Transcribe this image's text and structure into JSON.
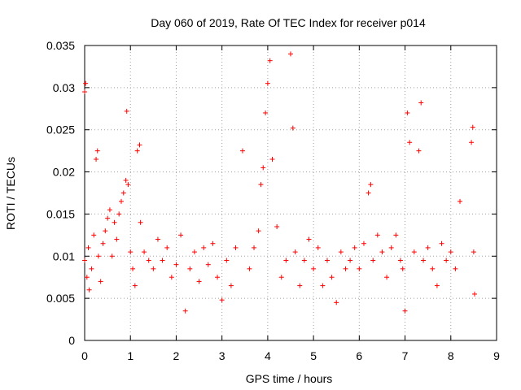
{
  "chart_data": {
    "type": "scatter",
    "title": "Day 060 of 2019, Rate Of TEC Index for receiver p014",
    "xlabel": "GPS time / hours",
    "ylabel": "ROTI / TECUs",
    "xlim": [
      0,
      9
    ],
    "ylim": [
      0,
      0.035
    ],
    "xticks": [
      "0",
      "1",
      "2",
      "3",
      "4",
      "5",
      "6",
      "7",
      "8",
      "9"
    ],
    "yticks": [
      "0",
      "0.005",
      "0.01",
      "0.015",
      "0.02",
      "0.025",
      "0.03",
      "0.035"
    ],
    "grid": true,
    "marker": "plus",
    "color": "#ff0000",
    "x": [
      0.0,
      0.0,
      0.02,
      0.05,
      0.08,
      0.1,
      0.15,
      0.2,
      0.25,
      0.28,
      0.3,
      0.35,
      0.4,
      0.45,
      0.5,
      0.55,
      0.6,
      0.65,
      0.7,
      0.75,
      0.8,
      0.85,
      0.9,
      0.92,
      0.95,
      1.0,
      1.05,
      1.1,
      1.15,
      1.2,
      1.22,
      1.3,
      1.4,
      1.5,
      1.6,
      1.7,
      1.8,
      1.9,
      2.0,
      2.1,
      2.2,
      2.3,
      2.4,
      2.5,
      2.6,
      2.7,
      2.8,
      2.9,
      3.0,
      3.1,
      3.2,
      3.3,
      3.45,
      3.6,
      3.7,
      3.8,
      3.85,
      3.9,
      3.95,
      4.0,
      4.05,
      4.1,
      4.2,
      4.3,
      4.4,
      4.5,
      4.55,
      4.6,
      4.7,
      4.8,
      4.9,
      5.0,
      5.1,
      5.2,
      5.3,
      5.4,
      5.5,
      5.6,
      5.7,
      5.8,
      5.9,
      6.0,
      6.1,
      6.2,
      6.25,
      6.3,
      6.4,
      6.5,
      6.6,
      6.7,
      6.8,
      6.9,
      6.95,
      7.0,
      7.05,
      7.1,
      7.2,
      7.3,
      7.35,
      7.4,
      7.5,
      7.6,
      7.7,
      7.8,
      7.9,
      8.0,
      8.1,
      8.2,
      8.45,
      8.48,
      8.5,
      8.52
    ],
    "y": [
      0.0095,
      0.0295,
      0.0305,
      0.0075,
      0.011,
      0.006,
      0.0085,
      0.0125,
      0.0215,
      0.0225,
      0.01,
      0.007,
      0.0115,
      0.013,
      0.0145,
      0.0155,
      0.01,
      0.014,
      0.012,
      0.015,
      0.0165,
      0.0175,
      0.019,
      0.0272,
      0.0185,
      0.0105,
      0.0085,
      0.0065,
      0.0225,
      0.0232,
      0.014,
      0.0105,
      0.0095,
      0.0085,
      0.012,
      0.0095,
      0.011,
      0.0075,
      0.009,
      0.0125,
      0.0035,
      0.0085,
      0.0105,
      0.007,
      0.011,
      0.009,
      0.0115,
      0.0075,
      0.0048,
      0.0095,
      0.0065,
      0.011,
      0.0225,
      0.0085,
      0.011,
      0.013,
      0.0185,
      0.0205,
      0.027,
      0.0305,
      0.0332,
      0.0215,
      0.0135,
      0.0075,
      0.0095,
      0.034,
      0.0252,
      0.0105,
      0.0065,
      0.0095,
      0.012,
      0.0085,
      0.011,
      0.0065,
      0.0095,
      0.0075,
      0.0045,
      0.0105,
      0.0085,
      0.0095,
      0.011,
      0.0085,
      0.0115,
      0.0175,
      0.0185,
      0.0095,
      0.0125,
      0.0105,
      0.0075,
      0.011,
      0.0125,
      0.0095,
      0.0085,
      0.0035,
      0.027,
      0.0235,
      0.0105,
      0.0225,
      0.0282,
      0.0095,
      0.011,
      0.0085,
      0.0065,
      0.0115,
      0.0095,
      0.0105,
      0.0085,
      0.0165,
      0.0235,
      0.0253,
      0.0105,
      0.0055
    ]
  }
}
